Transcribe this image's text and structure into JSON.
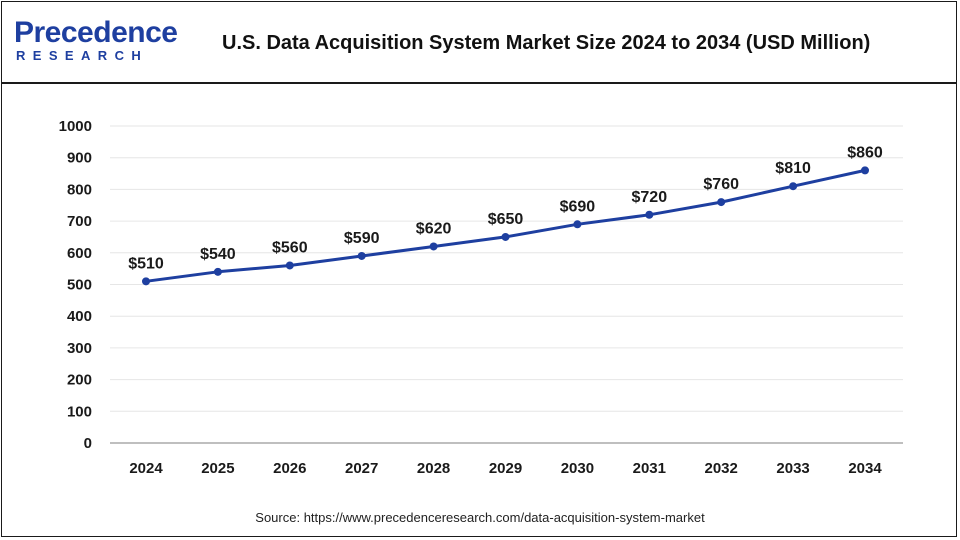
{
  "header": {
    "logo_top": "Precedence",
    "logo_bottom": "RESEARCH"
  },
  "colors": {
    "brand": "#1e3fa0",
    "line": "#1e3fa0",
    "grid": "#e6e6e6",
    "axis": "#999999"
  },
  "chart_data": {
    "type": "line",
    "title": "U.S. Data Acquisition System Market Size 2024 to 2034 (USD Million)",
    "xlabel": "",
    "ylabel": "",
    "categories": [
      "2024",
      "2025",
      "2026",
      "2027",
      "2028",
      "2029",
      "2030",
      "2031",
      "2032",
      "2033",
      "2034"
    ],
    "values": [
      510,
      540,
      560,
      590,
      620,
      650,
      690,
      720,
      760,
      810,
      860
    ],
    "data_labels": [
      "$510",
      "$540",
      "$560",
      "$590",
      "$620",
      "$650",
      "$690",
      "$720",
      "$760",
      "$810",
      "$860"
    ],
    "ylim": [
      0,
      1000
    ],
    "yticks": [
      "0",
      "100",
      "200",
      "300",
      "400",
      "500",
      "600",
      "700",
      "800",
      "900",
      "1000"
    ],
    "grid": true,
    "legend": "none"
  },
  "footer": {
    "source": "Source: https://www.precedenceresearch.com/data-acquisition-system-market"
  }
}
